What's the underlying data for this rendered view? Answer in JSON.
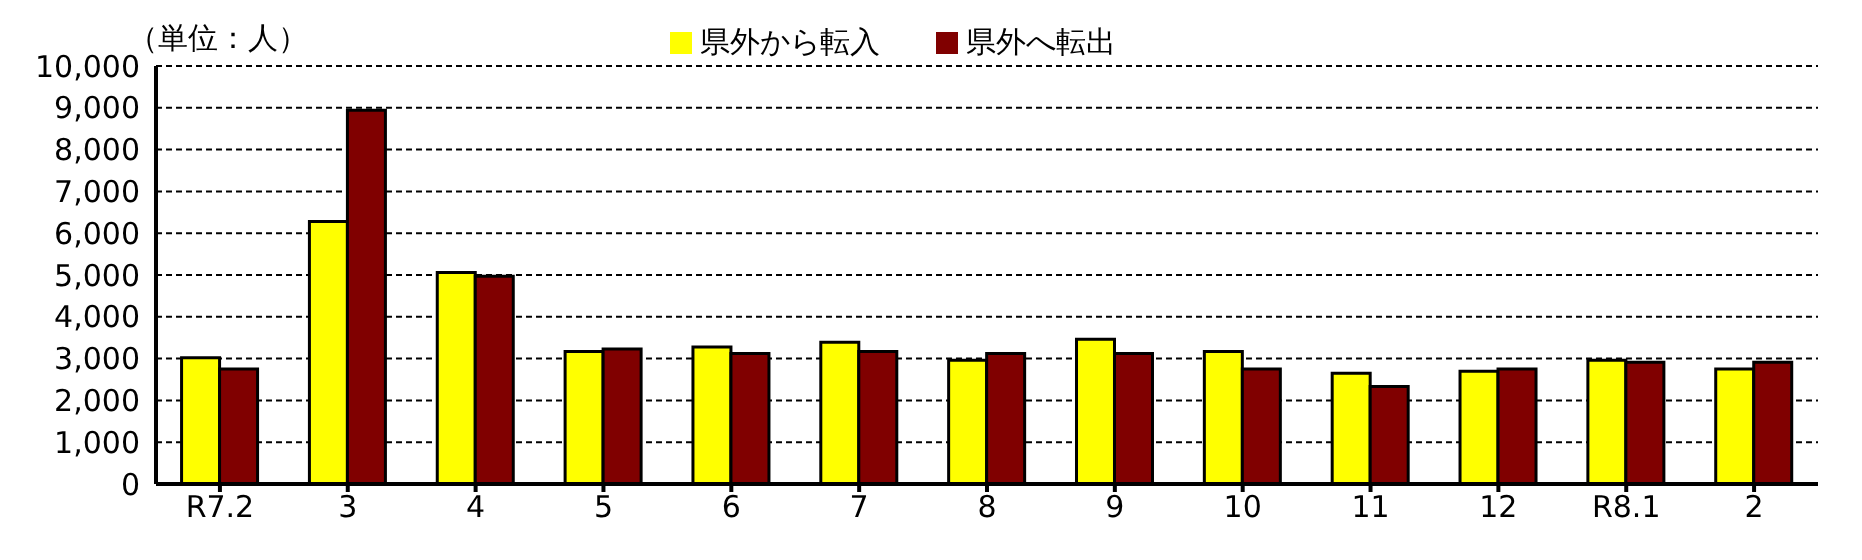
{
  "chart_data": {
    "type": "bar",
    "annotations": [
      "（単位：人）"
    ],
    "categories": [
      "R7.2",
      "3",
      "4",
      "5",
      "6",
      "7",
      "8",
      "9",
      "10",
      "11",
      "12",
      "R8.1",
      "2"
    ],
    "series": [
      {
        "name": "県外から転入",
        "color": "#ffff00",
        "values": [
          3020,
          6280,
          5060,
          3170,
          3280,
          3390,
          2960,
          3460,
          3170,
          2650,
          2700,
          2960,
          2750
        ]
      },
      {
        "name": "県外へ転出",
        "color": "#800000",
        "values": [
          2750,
          8940,
          4970,
          3230,
          3120,
          3170,
          3120,
          3120,
          2750,
          2330,
          2750,
          2910,
          2910
        ]
      }
    ],
    "ylim": [
      0,
      10000
    ],
    "yticks": [
      0,
      {
        "value": 1000,
        "label": "1,000"
      },
      {
        "value": 2000,
        "label": "2,000"
      },
      {
        "value": 3000,
        "label": "3,000"
      },
      {
        "value": 4000,
        "label": "4,000"
      },
      {
        "value": 5000,
        "label": "5,000"
      },
      {
        "value": 6000,
        "label": "6,000"
      },
      {
        "value": 7000,
        "label": "7,000"
      },
      {
        "value": 8000,
        "label": "8,000"
      },
      {
        "value": 9000,
        "label": "9,000"
      },
      {
        "value": 10000,
        "label": "10,000"
      }
    ],
    "grid": "y",
    "legend": "top"
  }
}
